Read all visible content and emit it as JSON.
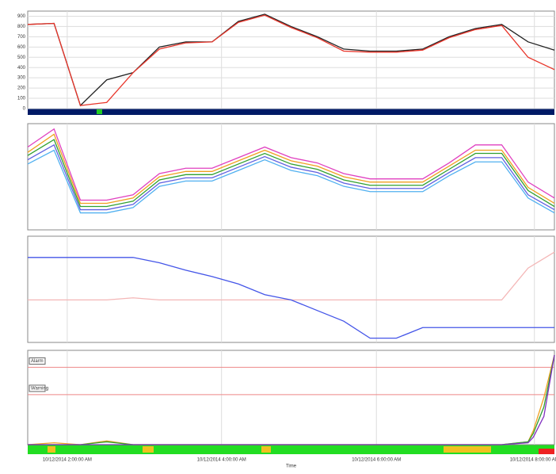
{
  "chart_data": [
    {
      "type": "line",
      "x": [
        0,
        5,
        10,
        15,
        20,
        25,
        30,
        35,
        40,
        45,
        50,
        55,
        60,
        65,
        70,
        75,
        80,
        85,
        90,
        95,
        100
      ],
      "xlim": [
        0,
        100
      ],
      "ylim": [
        0,
        950
      ],
      "yticks": [
        0,
        100,
        200,
        300,
        400,
        500,
        600,
        700,
        800,
        900
      ],
      "grid": true,
      "series": [
        {
          "color": "#222222",
          "values": [
            820,
            830,
            30,
            280,
            350,
            600,
            650,
            650,
            850,
            920,
            800,
            700,
            580,
            560,
            560,
            580,
            700,
            780,
            820,
            650,
            570
          ]
        },
        {
          "color": "#e8352a",
          "values": [
            820,
            830,
            30,
            60,
            350,
            580,
            640,
            650,
            840,
            910,
            790,
            690,
            560,
            550,
            550,
            570,
            690,
            770,
            810,
            500,
            380
          ]
        }
      ]
    },
    {
      "type": "line",
      "x": [
        0,
        5,
        10,
        15,
        20,
        25,
        30,
        35,
        40,
        45,
        50,
        55,
        60,
        65,
        70,
        75,
        80,
        85,
        90,
        95,
        100
      ],
      "xlim": [
        0,
        100
      ],
      "ylim": [
        0,
        100
      ],
      "grid": true,
      "series": [
        {
          "color": "#e040c0",
          "values": [
            78,
            95,
            28,
            28,
            33,
            53,
            58,
            58,
            68,
            78,
            68,
            63,
            53,
            48,
            48,
            48,
            63,
            80,
            80,
            45,
            30
          ]
        },
        {
          "color": "#f0a020",
          "values": [
            73,
            90,
            25,
            25,
            30,
            50,
            55,
            55,
            65,
            75,
            65,
            60,
            50,
            45,
            45,
            45,
            60,
            75,
            75,
            40,
            25
          ]
        },
        {
          "color": "#30a030",
          "values": [
            70,
            85,
            22,
            22,
            27,
            47,
            52,
            52,
            62,
            72,
            62,
            57,
            47,
            42,
            42,
            42,
            57,
            72,
            72,
            37,
            22
          ]
        },
        {
          "color": "#6060e0",
          "values": [
            66,
            80,
            19,
            19,
            24,
            44,
            49,
            49,
            59,
            69,
            59,
            54,
            44,
            39,
            39,
            39,
            54,
            68,
            68,
            33,
            19
          ]
        },
        {
          "color": "#50b0f0",
          "values": [
            62,
            75,
            16,
            16,
            21,
            41,
            46,
            46,
            56,
            66,
            56,
            51,
            41,
            36,
            36,
            36,
            51,
            64,
            64,
            30,
            16
          ]
        }
      ]
    },
    {
      "type": "line",
      "x": [
        0,
        5,
        10,
        15,
        20,
        25,
        30,
        35,
        40,
        45,
        50,
        55,
        60,
        65,
        70,
        75,
        80,
        85,
        90,
        95,
        100
      ],
      "xlim": [
        0,
        100
      ],
      "ylim": [
        0,
        100
      ],
      "grid": true,
      "series": [
        {
          "color": "#f4b6b6",
          "values": [
            40,
            40,
            40,
            40,
            42,
            40,
            40,
            40,
            40,
            40,
            40,
            40,
            40,
            40,
            40,
            40,
            40,
            40,
            40,
            70,
            85
          ]
        },
        {
          "color": "#4455e8",
          "values": [
            80,
            80,
            80,
            80,
            80,
            75,
            68,
            62,
            55,
            45,
            40,
            30,
            20,
            4,
            4,
            14,
            14,
            14,
            14,
            14,
            14
          ]
        }
      ]
    },
    {
      "type": "line",
      "x": [
        0,
        5,
        10,
        15,
        20,
        25,
        30,
        35,
        40,
        45,
        50,
        55,
        60,
        65,
        70,
        75,
        80,
        85,
        90,
        95,
        96,
        98,
        100
      ],
      "xlim": [
        0,
        100
      ],
      "ylim": [
        0,
        10
      ],
      "grid": true,
      "xticks": [
        {
          "value": 7.5,
          "label": "10/12/2014 2:00:00 AM"
        },
        {
          "value": 36.8,
          "label": "10/12/2014 4:00:00 AM"
        },
        {
          "value": 66.2,
          "label": "10/12/2014 6:00:00 AM"
        },
        {
          "value": 96.2,
          "label": "10/12/2014 8:00:00 AM"
        }
      ],
      "xlabel": "Time",
      "thresholds": [
        {
          "label": "Alarm",
          "value": 8.2
        },
        {
          "label": "Warning",
          "value": 5.3
        }
      ],
      "series": [
        {
          "color": "#f0a020",
          "values": [
            0,
            0.2,
            0,
            0.4,
            0,
            0,
            0,
            0,
            0,
            0,
            0,
            0,
            0,
            0,
            0,
            0,
            0,
            0,
            0,
            0.3,
            1.5,
            5,
            9.5
          ]
        },
        {
          "color": "#30a030",
          "values": [
            0,
            0,
            0,
            0.3,
            0,
            0,
            0,
            0,
            0,
            0,
            0,
            0,
            0,
            0,
            0,
            0,
            0,
            0,
            0,
            0.3,
            1.2,
            4,
            9.5
          ]
        },
        {
          "color": "#8030c0",
          "values": [
            0,
            0,
            0,
            0,
            0,
            0,
            0,
            0,
            0,
            0,
            0,
            0,
            0,
            0,
            0,
            0,
            0,
            0,
            0,
            0.2,
            0.8,
            3,
            9.5
          ]
        }
      ]
    }
  ]
}
